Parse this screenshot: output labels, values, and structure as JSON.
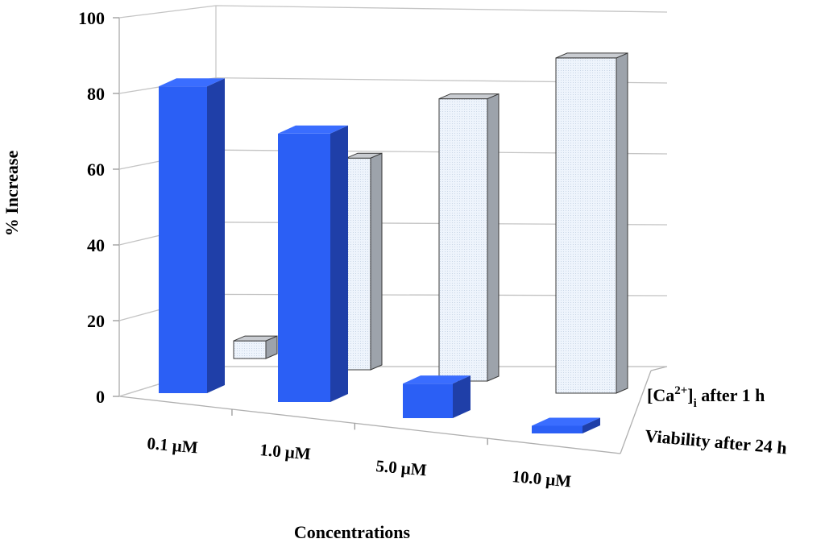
{
  "chart_data": {
    "type": "bar",
    "variant": "3d-grouped-depth",
    "ylabel": "% Increase",
    "xlabel": "Concentrations",
    "ylim": [
      0,
      100
    ],
    "yticks": [
      "0",
      "20",
      "40",
      "60",
      "80",
      "100"
    ],
    "categories": [
      "0.1 μM",
      "1.0 μM",
      "5.0 μM",
      "10.0 μM"
    ],
    "series": [
      {
        "name": "Viability after 24 h",
        "values": [
          80,
          70,
          9,
          2
        ],
        "color": "#2b5ff5"
      },
      {
        "name": "[Ca2+]i after 1 h",
        "label_main": "[Ca",
        "label_sup": "2+",
        "label_bracket": "]",
        "label_sub": "i",
        "label_rest": " after 1 h",
        "values": [
          5,
          60,
          80,
          95
        ],
        "color": "#e8f0fa"
      }
    ]
  }
}
